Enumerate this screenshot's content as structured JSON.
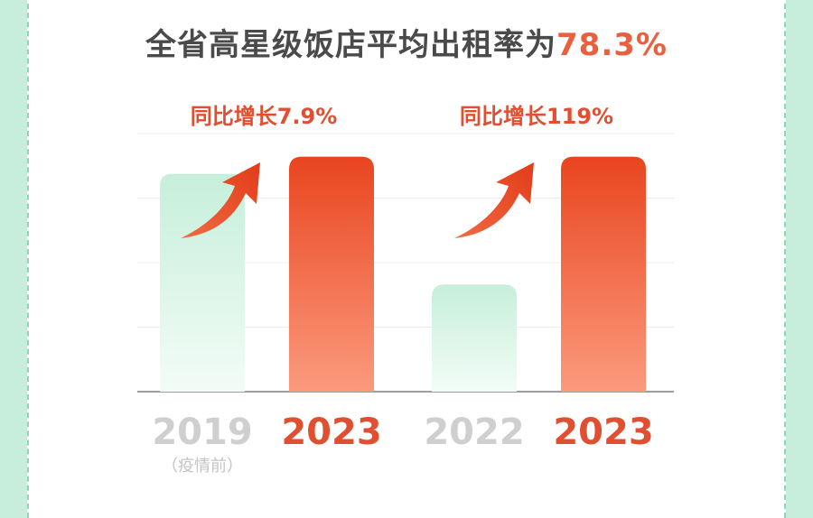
{
  "title": {
    "text": "全省高星级饭店平均出租率为",
    "highlight": "78.3%"
  },
  "colors": {
    "highlight": "#e9603f",
    "bar_old": "#c8f0dc",
    "bar_new": "#ea4a23",
    "year_old": "#cfcfcf",
    "year_new": "#e04f30",
    "growth": "#e04f30"
  },
  "chart_data": [
    {
      "type": "bar",
      "categories": [
        "2019",
        "2023"
      ],
      "category_notes": [
        "（疫情前）",
        ""
      ],
      "values": [
        72.6,
        78.3
      ],
      "annotation": "同比增长7.9%",
      "ylim": [
        0,
        86
      ],
      "grid": true
    },
    {
      "type": "bar",
      "categories": [
        "2022",
        "2023"
      ],
      "category_notes": [
        "",
        ""
      ],
      "values": [
        35.7,
        78.3
      ],
      "annotation": "同比增长119%",
      "ylim": [
        0,
        86
      ],
      "grid": true
    }
  ]
}
